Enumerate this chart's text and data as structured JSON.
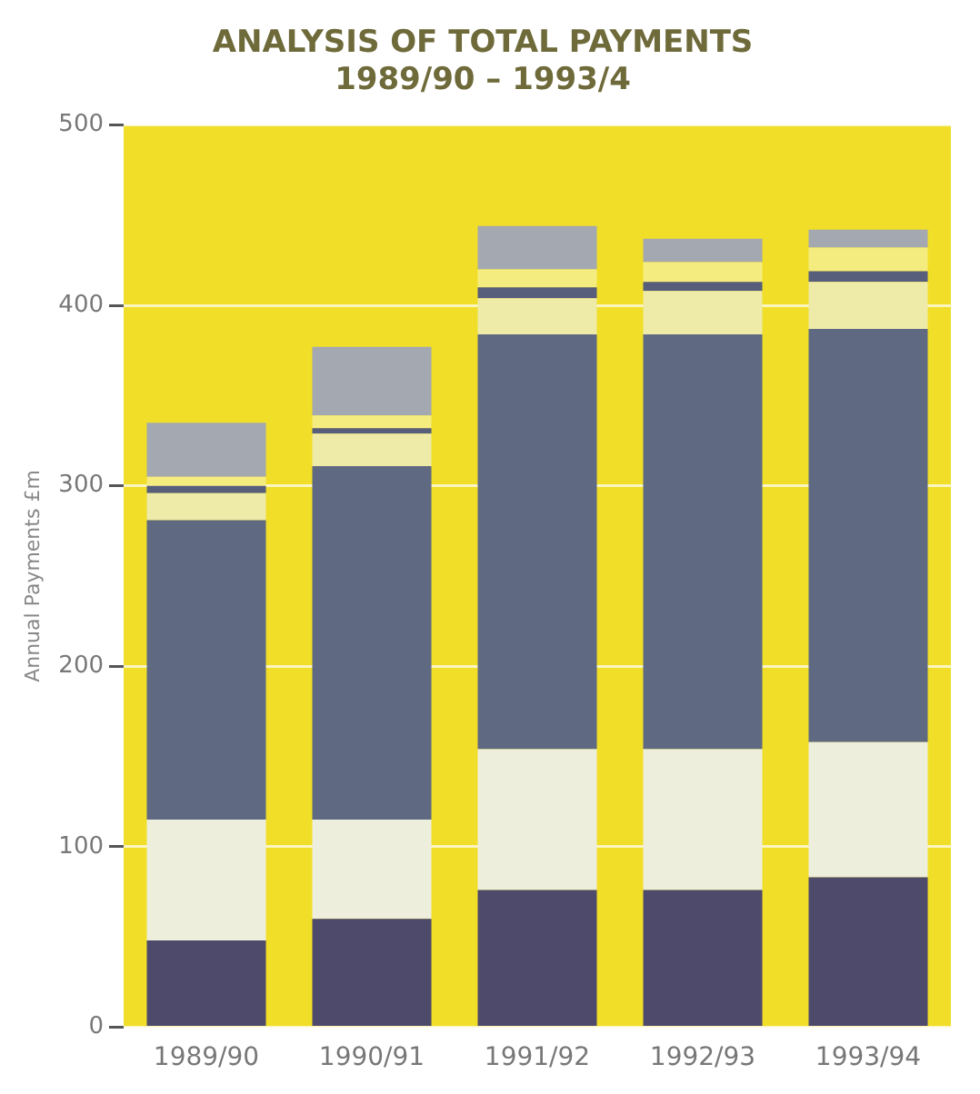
{
  "chart_data": {
    "type": "bar",
    "title": [
      "ANALYSIS OF TOTAL PAYMENTS",
      "1989/90 – 1993/4"
    ],
    "ylabel": "Annual Payments £m",
    "categories": [
      "1989/90",
      "1990/91",
      "1991/92",
      "1992/93",
      "1993/94"
    ],
    "stacked": true,
    "series": [
      {
        "color": "#4e4a6c",
        "values": [
          48,
          60,
          76,
          76,
          83
        ]
      },
      {
        "color": "#eeeedd",
        "values": [
          67,
          55,
          78,
          78,
          75
        ]
      },
      {
        "color": "#5f6a82",
        "values": [
          166,
          196,
          230,
          230,
          229
        ]
      },
      {
        "color": "#eeeaa8",
        "values": [
          15,
          18,
          20,
          24,
          26
        ]
      },
      {
        "color": "#565e7c",
        "values": [
          4,
          3,
          6,
          5,
          6
        ]
      },
      {
        "color": "#f5ec80",
        "values": [
          5,
          7,
          10,
          11,
          13
        ]
      },
      {
        "color": "#a4a8b0",
        "values": [
          30,
          38,
          24,
          13,
          10
        ]
      }
    ],
    "ylim": [
      0,
      500
    ],
    "yticks": [
      0,
      100,
      200,
      300,
      400,
      500
    ],
    "grid": "y",
    "legend": false
  }
}
